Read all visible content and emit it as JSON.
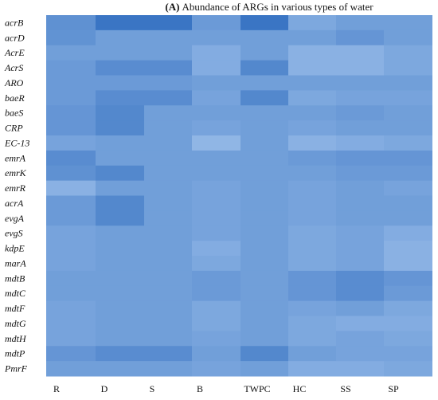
{
  "chart_data": {
    "type": "heatmap",
    "title_prefix": "(A)",
    "title": "Abundance of ARGs in various types of water",
    "columns": [
      "R",
      "D",
      "S",
      "B",
      "TWPC",
      "HC",
      "SS",
      "SP"
    ],
    "rows": [
      "acrB",
      "acrD",
      "AcrE",
      "AcrS",
      "ARO",
      "baeR",
      "baeS",
      "CRP",
      "EC-13",
      "emrA",
      "emrK",
      "emrR",
      "acrA",
      "evgA",
      "evgS",
      "kdpE",
      "marA",
      "mdtB",
      "mdtC",
      "mdtF",
      "mdtG",
      "mdtH",
      "mdtP",
      "PmrF"
    ],
    "values": [
      [
        0.6,
        0.9,
        0.9,
        0.5,
        0.9,
        0.35,
        0.45,
        0.45
      ],
      [
        0.58,
        0.45,
        0.45,
        0.45,
        0.45,
        0.45,
        0.55,
        0.45
      ],
      [
        0.45,
        0.45,
        0.45,
        0.3,
        0.45,
        0.25,
        0.25,
        0.35
      ],
      [
        0.5,
        0.65,
        0.65,
        0.3,
        0.7,
        0.25,
        0.25,
        0.35
      ],
      [
        0.5,
        0.5,
        0.5,
        0.45,
        0.45,
        0.45,
        0.45,
        0.45
      ],
      [
        0.5,
        0.65,
        0.65,
        0.4,
        0.7,
        0.35,
        0.4,
        0.4
      ],
      [
        0.55,
        0.7,
        0.45,
        0.45,
        0.45,
        0.45,
        0.5,
        0.45
      ],
      [
        0.55,
        0.7,
        0.45,
        0.4,
        0.45,
        0.4,
        0.45,
        0.45
      ],
      [
        0.4,
        0.45,
        0.45,
        0.2,
        0.45,
        0.25,
        0.3,
        0.35
      ],
      [
        0.65,
        0.45,
        0.45,
        0.45,
        0.45,
        0.5,
        0.55,
        0.55
      ],
      [
        0.6,
        0.7,
        0.45,
        0.45,
        0.45,
        0.45,
        0.5,
        0.5
      ],
      [
        0.25,
        0.45,
        0.45,
        0.4,
        0.45,
        0.4,
        0.45,
        0.4
      ],
      [
        0.5,
        0.7,
        0.45,
        0.4,
        0.45,
        0.4,
        0.45,
        0.45
      ],
      [
        0.5,
        0.7,
        0.45,
        0.4,
        0.45,
        0.4,
        0.45,
        0.45
      ],
      [
        0.4,
        0.45,
        0.45,
        0.4,
        0.45,
        0.35,
        0.4,
        0.3
      ],
      [
        0.4,
        0.45,
        0.45,
        0.3,
        0.45,
        0.35,
        0.4,
        0.25
      ],
      [
        0.4,
        0.45,
        0.45,
        0.35,
        0.45,
        0.35,
        0.4,
        0.25
      ],
      [
        0.45,
        0.45,
        0.45,
        0.5,
        0.45,
        0.55,
        0.65,
        0.55
      ],
      [
        0.45,
        0.45,
        0.45,
        0.5,
        0.45,
        0.55,
        0.65,
        0.5
      ],
      [
        0.4,
        0.45,
        0.45,
        0.35,
        0.45,
        0.4,
        0.45,
        0.35
      ],
      [
        0.4,
        0.45,
        0.45,
        0.35,
        0.45,
        0.35,
        0.3,
        0.3
      ],
      [
        0.4,
        0.45,
        0.45,
        0.4,
        0.45,
        0.35,
        0.4,
        0.35
      ],
      [
        0.55,
        0.65,
        0.65,
        0.45,
        0.7,
        0.45,
        0.4,
        0.4
      ],
      [
        0.45,
        0.45,
        0.45,
        0.4,
        0.45,
        0.3,
        0.3,
        0.35
      ]
    ],
    "color_low": "#a8c8ef",
    "color_high": "#2e6cbf"
  }
}
